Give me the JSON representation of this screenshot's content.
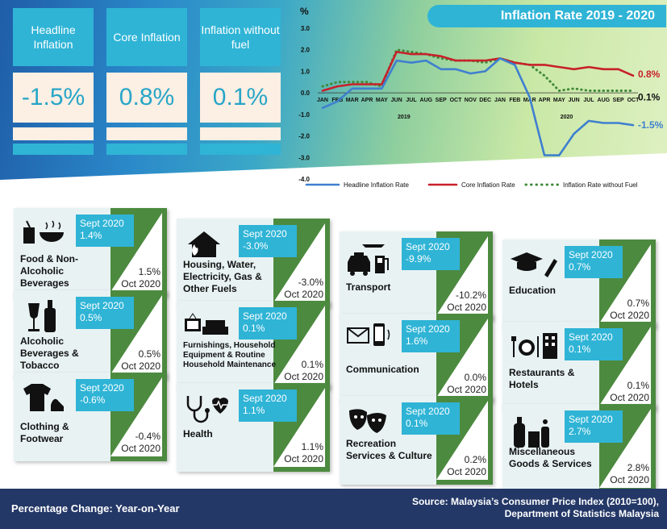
{
  "kpis": [
    {
      "label": "Headline Inflation",
      "value": "-1.5%"
    },
    {
      "label": "Core Inflation",
      "value": "0.8%"
    },
    {
      "label": "Inflation without fuel",
      "value": "0.1%"
    }
  ],
  "chart_title": "Inflation Rate 2019 - 2020",
  "chart_data": {
    "type": "line",
    "title": "Inflation Rate 2019 - 2020",
    "ylabel": "%",
    "ylim": [
      -4.0,
      3.0
    ],
    "yticks": [
      "3.0",
      "2.0",
      "1.0",
      "0.0",
      "-1.0",
      "-2.0",
      "-3.0",
      "-4.0"
    ],
    "x": [
      "JAN",
      "FEB",
      "MAR",
      "APR",
      "MAY",
      "JUN",
      "JUL",
      "AUG",
      "SEP",
      "OCT",
      "NOV",
      "DEC",
      "JAN",
      "FEB",
      "MAR",
      "APR",
      "MAY",
      "JUN",
      "JUL",
      "AUG",
      "SEP",
      "OCT"
    ],
    "year_labels": [
      "2019",
      "2020"
    ],
    "series": [
      {
        "name": "Headline Inflation Rate",
        "color": "#3f7fcf",
        "values": [
          -0.7,
          -0.4,
          0.2,
          0.2,
          0.2,
          1.5,
          1.4,
          1.5,
          1.1,
          1.1,
          0.9,
          1.0,
          1.6,
          1.3,
          -0.2,
          -2.9,
          -2.9,
          -1.9,
          -1.3,
          -1.4,
          -1.4,
          -1.5
        ]
      },
      {
        "name": "Core Inflation Rate",
        "color": "#c8202a",
        "values": [
          0.1,
          0.3,
          0.4,
          0.4,
          0.4,
          1.9,
          1.8,
          1.8,
          1.7,
          1.5,
          1.5,
          1.5,
          1.6,
          1.4,
          1.3,
          1.3,
          1.2,
          1.1,
          1.2,
          1.1,
          1.1,
          0.8
        ]
      },
      {
        "name": "Inflation Rate without Fuel",
        "color": "#3f8a3a",
        "dotted": true,
        "values": [
          0.3,
          0.5,
          0.5,
          0.5,
          0.3,
          2.0,
          1.9,
          1.8,
          1.6,
          1.5,
          1.5,
          1.4,
          1.6,
          1.4,
          1.3,
          0.8,
          0.1,
          0.2,
          0.1,
          0.1,
          0.1,
          0.1
        ]
      }
    ],
    "end_labels": [
      "0.8%",
      "0.1%",
      "-1.5%"
    ]
  },
  "cards": [
    {
      "name": "Food & Non-Alcoholic Beverages",
      "sept": "Sept 2020",
      "sept_val": "1.4%",
      "oct_val": "1.5%",
      "oct": "Oct 2020",
      "icon": "food-drink-icon"
    },
    {
      "name": "Alcoholic Beverages & Tobacco",
      "sept": "Sept 2020",
      "sept_val": "0.5%",
      "oct_val": "0.5%",
      "oct": "Oct 2020",
      "icon": "bottle-glass-icon"
    },
    {
      "name": "Clothing & Footwear",
      "sept": "Sept 2020",
      "sept_val": "-0.6%",
      "oct_val": "-0.4%",
      "oct": "Oct 2020",
      "icon": "shirt-shoe-icon"
    },
    {
      "name": "Housing, Water, Electricity, Gas & Other Fuels",
      "sept": "Sept 2020",
      "sept_val": "-3.0%",
      "oct_val": "-3.0%",
      "oct": "Oct 2020",
      "icon": "house-fire-icon"
    },
    {
      "name": "Furnishings, Household Equipment & Routine Household Maintenance",
      "sept": "Sept 2020",
      "sept_val": "0.1%",
      "oct_val": "0.1%",
      "oct": "Oct 2020",
      "icon": "tv-sofa-icon"
    },
    {
      "name": "Health",
      "sept": "Sept 2020",
      "sept_val": "1.1%",
      "oct_val": "1.1%",
      "oct": "Oct 2020",
      "icon": "stethoscope-heart-icon"
    },
    {
      "name": "Transport",
      "sept": "Sept 2020",
      "sept_val": "-9.9%",
      "oct_val": "-10.2%",
      "oct": "Oct 2020",
      "icon": "taxi-fuel-plane-icon"
    },
    {
      "name": "Communication",
      "sept": "Sept 2020",
      "sept_val": "1.6%",
      "oct_val": "0.0%",
      "oct": "Oct 2020",
      "icon": "mail-phone-icon"
    },
    {
      "name": "Recreation Services & Culture",
      "sept": "Sept 2020",
      "sept_val": "0.1%",
      "oct_val": "0.2%",
      "oct": "Oct 2020",
      "icon": "theatre-masks-icon"
    },
    {
      "name": "Education",
      "sept": "Sept 2020",
      "sept_val": "0.7%",
      "oct_val": "0.7%",
      "oct": "Oct 2020",
      "icon": "graduation-cap-pen-icon"
    },
    {
      "name": "Restaurants & Hotels",
      "sept": "Sept 2020",
      "sept_val": "0.1%",
      "oct_val": "0.1%",
      "oct": "Oct 2020",
      "icon": "dining-hotel-icon"
    },
    {
      "name": "Miscellaneous Goods & Services",
      "sept": "Sept 2020",
      "sept_val": "2.7%",
      "oct_val": "2.8%",
      "oct": "Oct 2020",
      "icon": "toiletries-icon"
    }
  ],
  "footer": {
    "left": "Percentage Change: Year-on-Year",
    "right_line1": "Source: Malaysia’s Consumer Price Index (2010=100),",
    "right_line2": "Department of Statistics Malaysia"
  }
}
